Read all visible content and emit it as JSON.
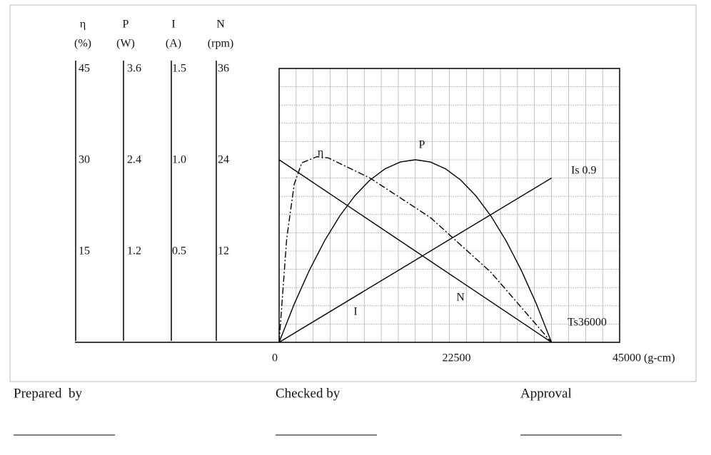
{
  "chart_data": {
    "type": "line",
    "axes": [
      {
        "name": "η",
        "unit": "(%)",
        "lim": [
          0,
          45
        ],
        "ticks": [
          45,
          30,
          15
        ]
      },
      {
        "name": "P",
        "unit": "(W)",
        "lim": [
          0,
          3.6
        ],
        "ticks": [
          3.6,
          2.4,
          1.2
        ]
      },
      {
        "name": "I",
        "unit": "(A)",
        "lim": [
          0,
          1.5
        ],
        "ticks": [
          1.5,
          {
            "value": 1,
            "label": "1.0"
          },
          0.5
        ]
      },
      {
        "name": "N",
        "unit": "(rpm)",
        "lim": [
          0,
          36
        ],
        "ticks": [
          36,
          24,
          12
        ]
      }
    ],
    "xlim": [
      0,
      45000
    ],
    "xticks": [
      0,
      22500,
      {
        "value": 45000,
        "label": "45000 (g-cm)"
      }
    ],
    "grid": true,
    "series": [
      {
        "name": "η",
        "axis": 0,
        "color": "#000000",
        "dash": "dashdot",
        "x": [
          0,
          1000,
          2000,
          3000,
          5000,
          6500,
          12000,
          20000,
          28000,
          36000
        ],
        "values": [
          0,
          17,
          26,
          29.5,
          30.5,
          30.3,
          27,
          20.5,
          11.5,
          0
        ]
      },
      {
        "name": "P",
        "axis": 1,
        "color": "#000000",
        "x": [
          0,
          2000,
          4000,
          6000,
          8000,
          10000,
          12000,
          14000,
          16000,
          18000,
          20000,
          22000,
          24000,
          26000,
          28000,
          30000,
          32000,
          34000,
          36000
        ],
        "values": [
          0,
          0.504,
          0.948,
          1.333,
          1.659,
          1.926,
          2.133,
          2.281,
          2.37,
          2.4,
          2.37,
          2.281,
          2.133,
          1.926,
          1.659,
          1.333,
          0.948,
          0.504,
          0
        ]
      },
      {
        "name": "I",
        "axis": 2,
        "color": "#000000",
        "x": [
          0,
          36000
        ],
        "values": [
          0,
          0.9
        ]
      },
      {
        "name": "N",
        "axis": 3,
        "color": "#000000",
        "x": [
          0,
          36000
        ],
        "values": [
          24,
          0
        ]
      }
    ],
    "annotations": [
      "Is 0.9",
      "Ts36000"
    ]
  },
  "footer": [
    "Prepared  by",
    "Checked by",
    "Approval"
  ]
}
